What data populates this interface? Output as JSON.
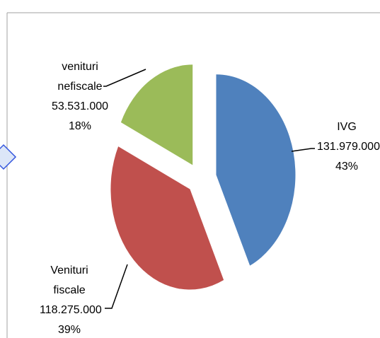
{
  "chart_data": {
    "type": "pie",
    "categories": [
      "IVG",
      "Venituri fiscale",
      "venituri nefiscale"
    ],
    "values": [
      43,
      39,
      18
    ],
    "value_labels": [
      "43%",
      "39%",
      "18%"
    ],
    "amounts": [
      "131.979.000",
      "118.275.000",
      "53.531.000"
    ],
    "colors": [
      "#4f81bd",
      "#c0504d",
      "#9bbb59"
    ],
    "exploded": true
  }
}
